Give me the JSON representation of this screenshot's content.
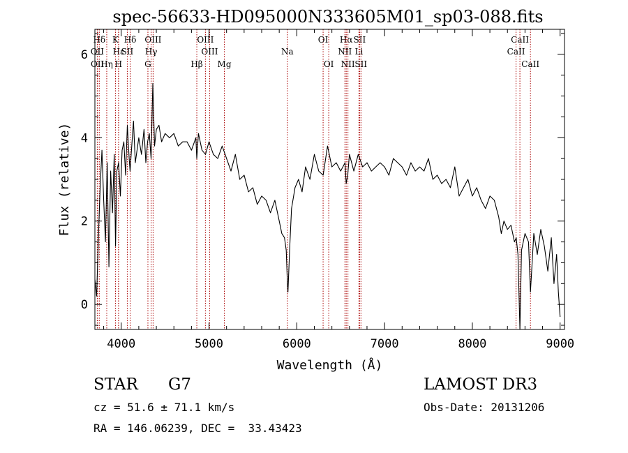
{
  "chart_data": {
    "type": "line",
    "title": "spec-56633-HD095000N333605M01_sp03-088.fits",
    "xlabel": "Wavelength (Å)",
    "ylabel": "Flux (relative)",
    "xlim": [
      3700,
      9050
    ],
    "ylim": [
      -0.6,
      6.6
    ],
    "xticks": [
      4000,
      5000,
      6000,
      7000,
      8000,
      9000
    ],
    "xtick_labels": [
      "4000",
      "5000",
      "6000",
      "7000",
      "8000",
      "9000"
    ],
    "yticks": [
      0,
      2,
      4,
      6
    ],
    "ytick_labels": [
      "0",
      "2",
      "4",
      "6"
    ],
    "grid": false,
    "series": [
      {
        "name": "spectrum",
        "x": [
          3700,
          3720,
          3740,
          3760,
          3780,
          3800,
          3820,
          3840,
          3860,
          3880,
          3900,
          3920,
          3935,
          3950,
          3970,
          3990,
          4010,
          4030,
          4050,
          4070,
          4090,
          4101,
          4120,
          4140,
          4160,
          4180,
          4200,
          4230,
          4260,
          4280,
          4300,
          4320,
          4340,
          4360,
          4380,
          4400,
          4430,
          4460,
          4500,
          4550,
          4600,
          4650,
          4700,
          4750,
          4800,
          4850,
          4861,
          4880,
          4920,
          4960,
          5000,
          5050,
          5100,
          5150,
          5200,
          5250,
          5300,
          5350,
          5400,
          5450,
          5500,
          5550,
          5600,
          5650,
          5700,
          5750,
          5800,
          5830,
          5860,
          5880,
          5893,
          5900,
          5920,
          5940,
          5980,
          6020,
          6060,
          6100,
          6150,
          6200,
          6250,
          6300,
          6350,
          6400,
          6450,
          6500,
          6550,
          6563,
          6580,
          6600,
          6650,
          6700,
          6750,
          6800,
          6850,
          6900,
          6950,
          7000,
          7050,
          7100,
          7150,
          7200,
          7250,
          7300,
          7350,
          7400,
          7450,
          7500,
          7550,
          7600,
          7650,
          7700,
          7750,
          7800,
          7850,
          7900,
          7950,
          8000,
          8050,
          8100,
          8150,
          8200,
          8250,
          8300,
          8330,
          8360,
          8400,
          8440,
          8480,
          8500,
          8520,
          8542,
          8560,
          8600,
          8640,
          8662,
          8700,
          8740,
          8780,
          8820,
          8860,
          8900,
          8930,
          8960,
          8980,
          9000
        ],
        "y": [
          0.6,
          0.2,
          1.6,
          2.8,
          3.7,
          2.5,
          1.5,
          3.4,
          0.9,
          3.2,
          2.2,
          3.6,
          1.4,
          3.2,
          3.4,
          2.6,
          3.7,
          3.9,
          3.1,
          4.3,
          3.5,
          3.2,
          3.8,
          4.4,
          3.4,
          3.7,
          4.0,
          3.6,
          4.2,
          3.4,
          3.9,
          4.1,
          3.5,
          5.3,
          3.8,
          4.2,
          4.3,
          3.9,
          4.1,
          4.0,
          4.1,
          3.8,
          3.9,
          3.9,
          3.7,
          4.0,
          3.5,
          4.1,
          3.7,
          3.6,
          3.9,
          3.6,
          3.5,
          3.8,
          3.5,
          3.2,
          3.6,
          3.0,
          3.1,
          2.7,
          2.8,
          2.4,
          2.6,
          2.5,
          2.2,
          2.5,
          2.0,
          1.7,
          1.6,
          1.3,
          0.5,
          0.3,
          1.4,
          2.3,
          2.8,
          3.0,
          2.7,
          3.3,
          3.0,
          3.6,
          3.2,
          3.1,
          3.8,
          3.3,
          3.4,
          3.2,
          3.4,
          2.9,
          3.1,
          3.6,
          3.2,
          3.6,
          3.3,
          3.4,
          3.2,
          3.3,
          3.4,
          3.3,
          3.1,
          3.5,
          3.4,
          3.3,
          3.1,
          3.4,
          3.2,
          3.3,
          3.2,
          3.5,
          3.0,
          3.1,
          2.9,
          3.0,
          2.8,
          3.3,
          2.6,
          2.8,
          3.0,
          2.6,
          2.8,
          2.5,
          2.3,
          2.6,
          2.5,
          2.1,
          1.7,
          2.0,
          1.8,
          1.9,
          1.5,
          1.6,
          1.2,
          -0.6,
          1.3,
          1.7,
          1.5,
          0.3,
          1.7,
          1.2,
          1.8,
          1.4,
          0.8,
          1.6,
          0.5,
          1.2,
          0.3,
          -0.3
        ]
      }
    ],
    "lines": [
      {
        "label": "Hδ",
        "x": 3750,
        "row": 0
      },
      {
        "label": "OII",
        "x": 3727,
        "row": 1
      },
      {
        "label": "OII",
        "x": 3729,
        "row": 2
      },
      {
        "label": "K",
        "x": 3934,
        "row": 0
      },
      {
        "label": "Hε",
        "x": 3970,
        "row": 1
      },
      {
        "label": "Hη",
        "x": 3835,
        "row": 2
      },
      {
        "label": "SII",
        "x": 4069,
        "row": 1
      },
      {
        "label": "H",
        "x": 3969,
        "row": 2
      },
      {
        "label": "Hδ",
        "x": 4102,
        "row": 0
      },
      {
        "label": "OIII",
        "x": 4363,
        "row": 0
      },
      {
        "label": "Hγ",
        "x": 4341,
        "row": 1
      },
      {
        "label": "G",
        "x": 4304,
        "row": 2
      },
      {
        "label": "OIII",
        "x": 4959,
        "row": 0
      },
      {
        "label": "OIII",
        "x": 5007,
        "row": 1
      },
      {
        "label": "Hβ",
        "x": 4861,
        "row": 2
      },
      {
        "label": "Mg",
        "x": 5175,
        "row": 2
      },
      {
        "label": "Na",
        "x": 5893,
        "row": 1
      },
      {
        "label": "OI",
        "x": 6300,
        "row": 0
      },
      {
        "label": "OI",
        "x": 6364,
        "row": 2
      },
      {
        "label": "Hα",
        "x": 6563,
        "row": 0
      },
      {
        "label": "SII",
        "x": 6716,
        "row": 0
      },
      {
        "label": "NII",
        "x": 6548,
        "row": 1
      },
      {
        "label": "Li",
        "x": 6708,
        "row": 1
      },
      {
        "label": "NII",
        "x": 6583,
        "row": 2
      },
      {
        "label": "SII",
        "x": 6731,
        "row": 2
      },
      {
        "label": "CaII",
        "x": 8542,
        "row": 0
      },
      {
        "label": "CaII",
        "x": 8498,
        "row": 1
      },
      {
        "label": "CaII",
        "x": 8662,
        "row": 2
      }
    ]
  },
  "info": {
    "object_class": "STAR",
    "subclass": "G7",
    "survey": "LAMOST DR3",
    "cz_line": "cz = 51.6 ± 71.1 km/s",
    "obs_date_line": "Obs-Date: 20131206",
    "coords_line": "RA = 146.06239, DEC =  33.43423"
  },
  "colors": {
    "spectrum": "#000000",
    "line_marker": "#aa0000",
    "axes": "#000000"
  }
}
